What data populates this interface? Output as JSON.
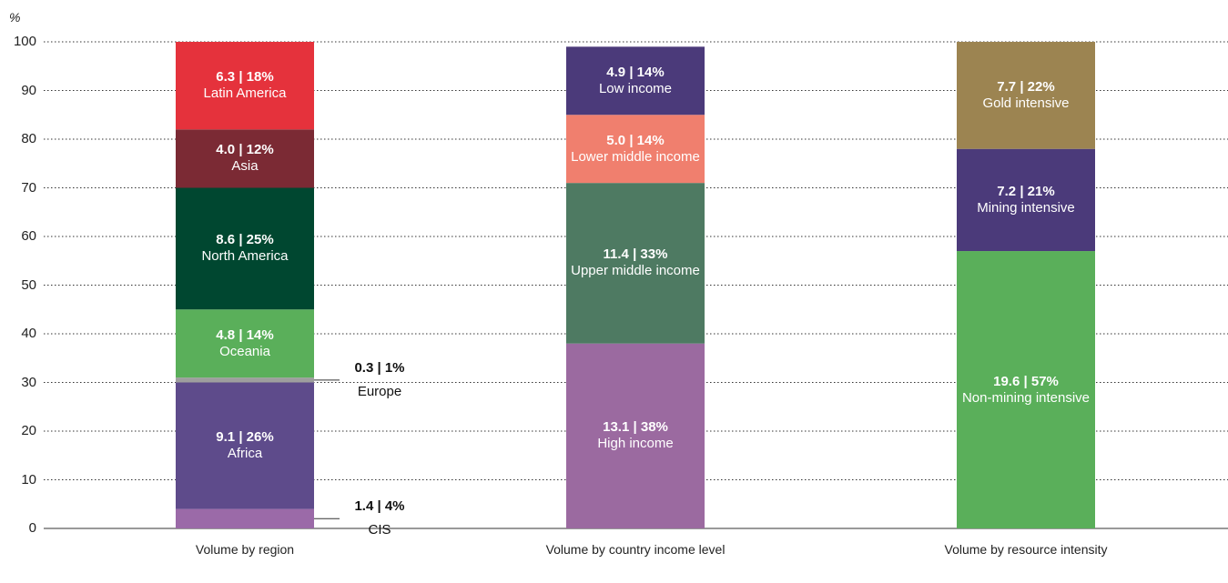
{
  "chart_data": {
    "type": "stacked_bar",
    "ylabel": "%",
    "ylim": [
      0,
      100
    ],
    "yticks": [
      0,
      10,
      20,
      30,
      40,
      50,
      60,
      70,
      80,
      90,
      100
    ],
    "grid": true,
    "bars": [
      {
        "category": "Volume by region",
        "segments": [
          {
            "name": "CIS",
            "value": 4,
            "value_label": "1.4 | 4%",
            "color": "#9b6aa8"
          },
          {
            "name": "Africa",
            "value": 26,
            "value_label": "9.1 | 26%",
            "color": "#5e4b8b"
          },
          {
            "name": "Europe",
            "value": 1,
            "value_label": "0.3 | 1%",
            "color": "#9e9e9e"
          },
          {
            "name": "Oceania",
            "value": 14,
            "value_label": "4.8 | 14%",
            "color": "#5aaf5a"
          },
          {
            "name": "North America",
            "value": 25,
            "value_label": "8.6 | 25%",
            "color": "#004730"
          },
          {
            "name": "Asia",
            "value": 12,
            "value_label": "4.0 | 12%",
            "color": "#7b2a34"
          },
          {
            "name": "Latin America",
            "value": 18,
            "value_label": "6.3 | 18%",
            "color": "#e5323c"
          }
        ]
      },
      {
        "category": "Volume by country income level",
        "segments": [
          {
            "name": "High income",
            "value": 38,
            "value_label": "13.1 | 38%",
            "color": "#9b6aa0"
          },
          {
            "name": "Upper middle income",
            "value": 33,
            "value_label": "11.4 | 33%",
            "color": "#4e7a62"
          },
          {
            "name": "Lower middle income",
            "value": 14,
            "value_label": "5.0 | 14%",
            "color": "#f07f6e"
          },
          {
            "name": "Low income",
            "value": 14,
            "value_label": "4.9 | 14%",
            "color": "#4b3a7a"
          }
        ]
      },
      {
        "category": "Volume by resource intensity",
        "segments": [
          {
            "name": "Non-mining intensive",
            "value": 57,
            "value_label": "19.6 | 57%",
            "color": "#5aaf5a"
          },
          {
            "name": "Mining intensive",
            "value": 21,
            "value_label": "7.2 | 21%",
            "color": "#4b3a7a"
          },
          {
            "name": "Gold intensive",
            "value": 22,
            "value_label": "7.7 | 22%",
            "color": "#9c8451"
          }
        ]
      }
    ]
  }
}
